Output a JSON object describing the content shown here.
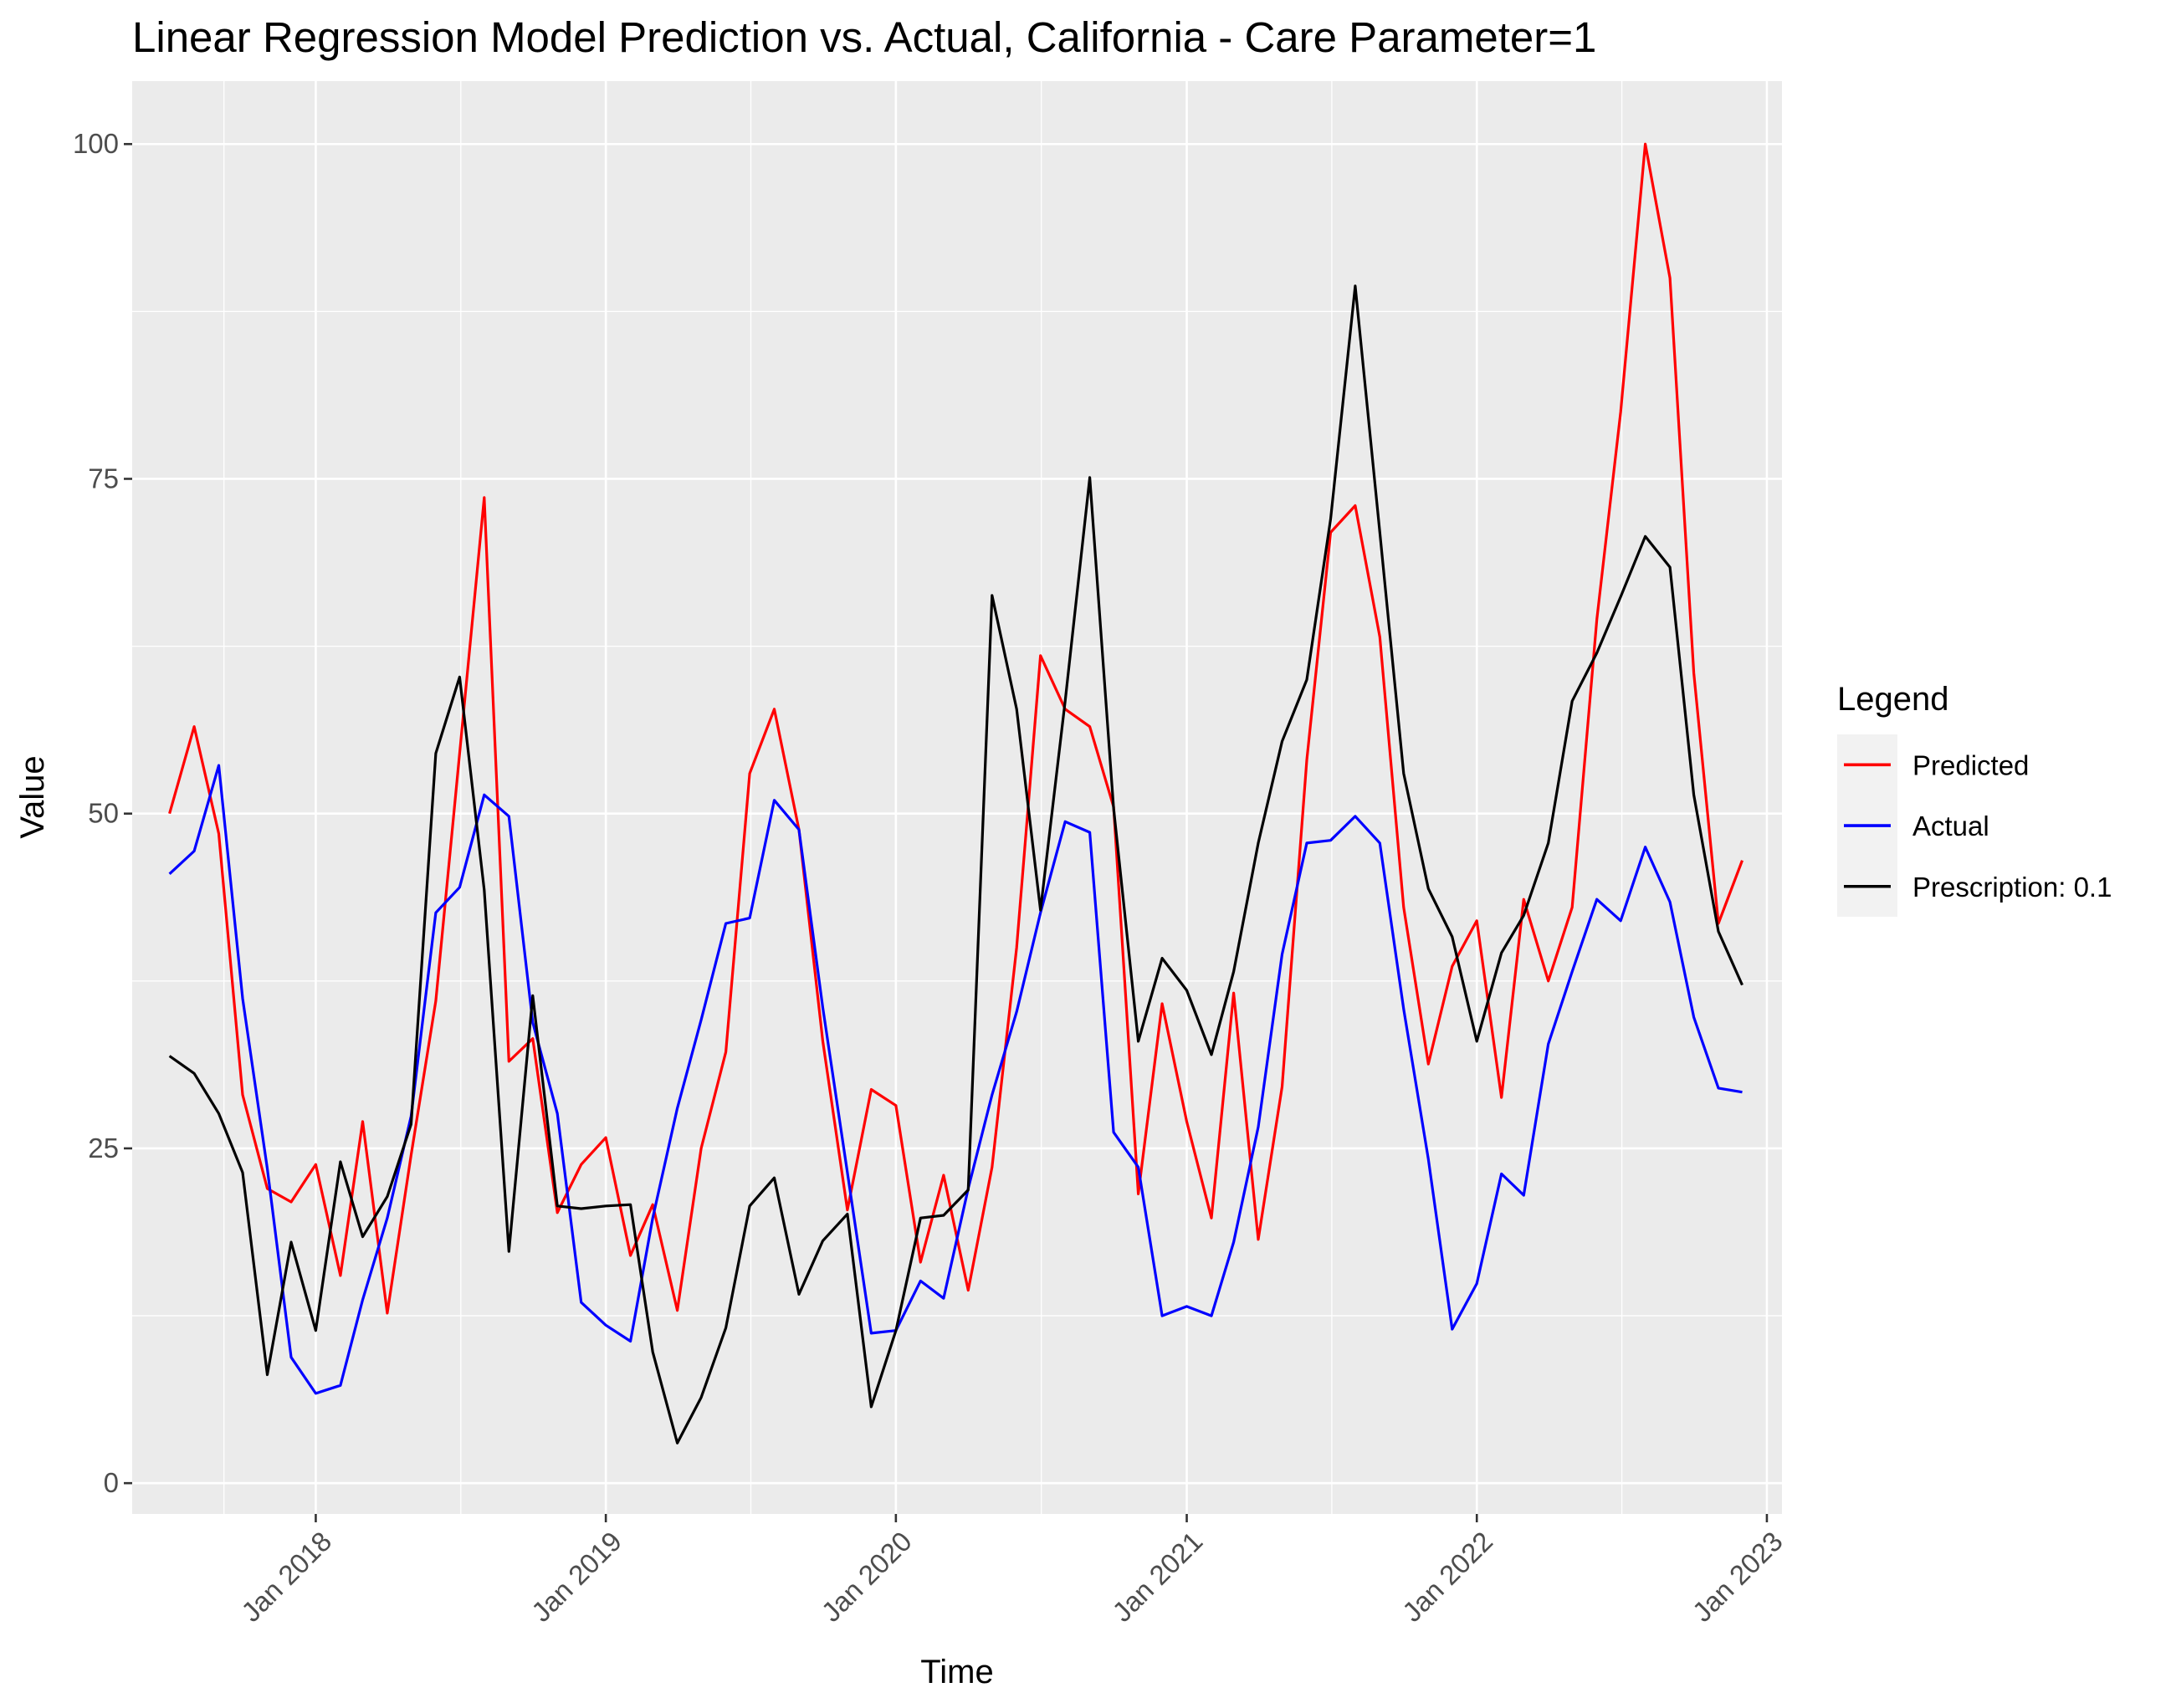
{
  "chart_data": {
    "type": "line",
    "title": "Linear Regression Model Prediction vs. Actual, California - Care Parameter=1",
    "xlabel": "Time",
    "ylabel": "Value",
    "x_start_date": "2017-07-01",
    "x_step": "monthly",
    "xlim": [
      "2017-05-15",
      "2023-01-20"
    ],
    "ylim": [
      -2.3,
      104.7
    ],
    "y_ticks": [
      0,
      25,
      50,
      75,
      100
    ],
    "x_ticks": [
      {
        "date": "2018-01-01",
        "label": "Jan 2018"
      },
      {
        "date": "2019-01-01",
        "label": "Jan 2019"
      },
      {
        "date": "2020-01-01",
        "label": "Jan 2020"
      },
      {
        "date": "2021-01-01",
        "label": "Jan 2021"
      },
      {
        "date": "2022-01-01",
        "label": "Jan 2022"
      },
      {
        "date": "2023-01-01",
        "label": "Jan 2023"
      }
    ],
    "grid": true,
    "legend": {
      "title": "Legend",
      "position": "right"
    },
    "series": [
      {
        "name": "Predicted",
        "color": "#FF0000",
        "values": [
          50,
          56.5,
          48.5,
          29,
          22,
          21,
          23.8,
          15.5,
          27,
          12.7,
          24.5,
          36,
          54.5,
          73.6,
          31.5,
          33.2,
          20.2,
          23.8,
          25.8,
          17,
          20.8,
          12.9,
          25,
          32.2,
          53,
          57.8,
          48.8,
          33,
          20.4,
          29.4,
          28.2,
          16.5,
          23,
          14.4,
          23.6,
          40,
          61.8,
          57.8,
          56.5,
          50.5,
          21.6,
          35.8,
          27,
          19.8,
          36.6,
          18.2,
          29.6,
          54,
          71,
          73,
          63.2,
          43,
          31.3,
          38.6,
          42,
          28.8,
          43.6,
          37.5,
          43,
          64.5,
          80,
          100,
          90,
          60.5,
          41.8,
          46.5
        ]
      },
      {
        "name": "Actual",
        "color": "#0000FF",
        "values": [
          45.5,
          47.2,
          53.6,
          36.2,
          23.5,
          9.4,
          6.7,
          7.3,
          13.7,
          19.8,
          27.4,
          42.6,
          44.5,
          51.4,
          49.8,
          34.4,
          27.6,
          13.5,
          11.8,
          10.6,
          19.8,
          28,
          34.6,
          41.8,
          42.2,
          51,
          48.8,
          35.5,
          23.2,
          11.2,
          11.4,
          15.1,
          13.8,
          22,
          29,
          35.2,
          42.6,
          49.4,
          48.6,
          26.2,
          23.6,
          12.5,
          13.2,
          12.5,
          18,
          26.6,
          39.5,
          47.8,
          48,
          49.8,
          47.8,
          35.4,
          24.2,
          11.5,
          14.9,
          23.1,
          21.5,
          32.8,
          38.2,
          43.6,
          42,
          47.5,
          43.4,
          34.8,
          29.5,
          29.2
        ]
      },
      {
        "name": "Prescription: 0.1",
        "color": "#000000",
        "values": [
          31.9,
          30.6,
          27.6,
          23.2,
          8.1,
          18,
          11.4,
          24,
          18.4,
          21.4,
          26.8,
          54.5,
          60.2,
          44.3,
          17.3,
          36.4,
          20.7,
          20.5,
          20.7,
          20.8,
          9.8,
          3,
          6.4,
          11.6,
          20.7,
          22.8,
          14.1,
          18.1,
          20.1,
          5.7,
          11.4,
          19.8,
          20,
          21.9,
          66.3,
          57.8,
          42.8,
          58.4,
          75.1,
          50.4,
          33,
          39.2,
          36.8,
          32,
          38.2,
          47.8,
          55.4,
          60,
          72,
          89.4,
          71,
          53,
          44.4,
          40.8,
          33,
          39.6,
          42.4,
          47.8,
          58.4,
          62,
          66.2,
          70.7,
          68.4,
          51.4,
          41.2,
          37.2
        ]
      }
    ]
  }
}
